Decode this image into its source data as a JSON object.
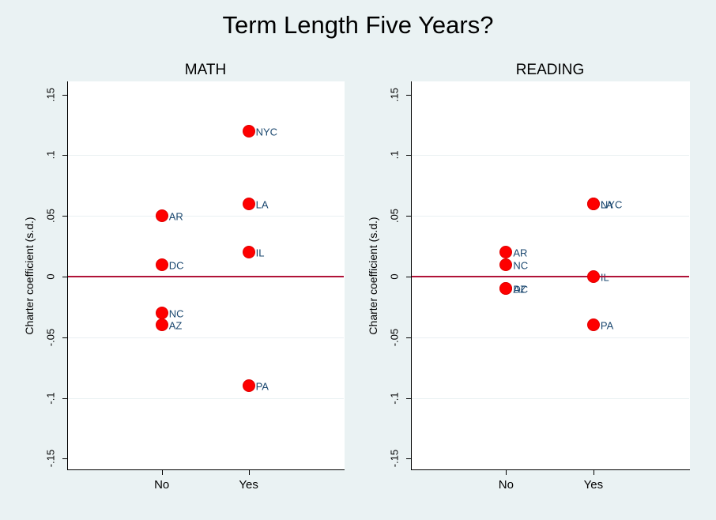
{
  "title": "Term Length Five Years?",
  "colors": {
    "background": "#eaf2f3",
    "plot_background": "#ffffff",
    "axis": "#000000",
    "gridline": "#e9f0f2",
    "refline": "#b01238",
    "marker_fill": "#fe0000",
    "marker_edge": "#e00000",
    "marker_label": "#1a476f",
    "text": "#000000"
  },
  "chart_data": [
    {
      "type": "scatter",
      "title": "MATH",
      "ylabel": "Charter coefficient (s.d.)",
      "x_categories": [
        "No",
        "Yes"
      ],
      "ylim": [
        -0.16,
        0.16
      ],
      "refline_y": 0,
      "grid": "horizontal-at-labeled-ticks",
      "legend": "none",
      "yticks": [
        {
          "label": ".15",
          "value": 0.15,
          "grid": false
        },
        {
          "label": ".1",
          "value": 0.1,
          "grid": true
        },
        {
          "label": ".05",
          "value": 0.05,
          "grid": true
        },
        {
          "label": "0",
          "value": 0.0,
          "grid": false
        },
        {
          "label": "-.05",
          "value": -0.05,
          "grid": true
        },
        {
          "label": "-.1",
          "value": -0.1,
          "grid": true
        },
        {
          "label": "-.15",
          "value": -0.15,
          "grid": false
        }
      ],
      "points": [
        {
          "label": "AR",
          "x": "No",
          "y": 0.05
        },
        {
          "label": "DC",
          "x": "No",
          "y": 0.01
        },
        {
          "label": "NC",
          "x": "No",
          "y": -0.03
        },
        {
          "label": "AZ",
          "x": "No",
          "y": -0.04
        },
        {
          "label": "NYC",
          "x": "Yes",
          "y": 0.12
        },
        {
          "label": "LA",
          "x": "Yes",
          "y": 0.06
        },
        {
          "label": "IL",
          "x": "Yes",
          "y": 0.02
        },
        {
          "label": "PA",
          "x": "Yes",
          "y": -0.09
        }
      ]
    },
    {
      "type": "scatter",
      "title": "READING",
      "ylabel": "Charter coefficient (s.d.)",
      "x_categories": [
        "No",
        "Yes"
      ],
      "ylim": [
        -0.16,
        0.16
      ],
      "refline_y": 0,
      "grid": "horizontal-at-labeled-ticks",
      "legend": "none",
      "yticks": [
        {
          "label": ".15",
          "value": 0.15,
          "grid": false
        },
        {
          "label": ".1",
          "value": 0.1,
          "grid": true
        },
        {
          "label": ".05",
          "value": 0.05,
          "grid": true
        },
        {
          "label": "0",
          "value": 0.0,
          "grid": false
        },
        {
          "label": "-.05",
          "value": -0.05,
          "grid": true
        },
        {
          "label": "-.1",
          "value": -0.1,
          "grid": true
        },
        {
          "label": "-.15",
          "value": -0.15,
          "grid": false
        }
      ],
      "points": [
        {
          "label": "AR",
          "x": "No",
          "y": 0.02
        },
        {
          "label": "NC",
          "x": "No",
          "y": 0.01
        },
        {
          "label": "AZ",
          "x": "No",
          "y": -0.01
        },
        {
          "label": "DC",
          "x": "No",
          "y": -0.01
        },
        {
          "label": "NYC",
          "x": "Yes",
          "y": 0.06
        },
        {
          "label": "LA",
          "x": "Yes",
          "y": 0.06
        },
        {
          "label": "IL",
          "x": "Yes",
          "y": 0.0
        },
        {
          "label": "PA",
          "x": "Yes",
          "y": -0.04
        }
      ]
    }
  ]
}
